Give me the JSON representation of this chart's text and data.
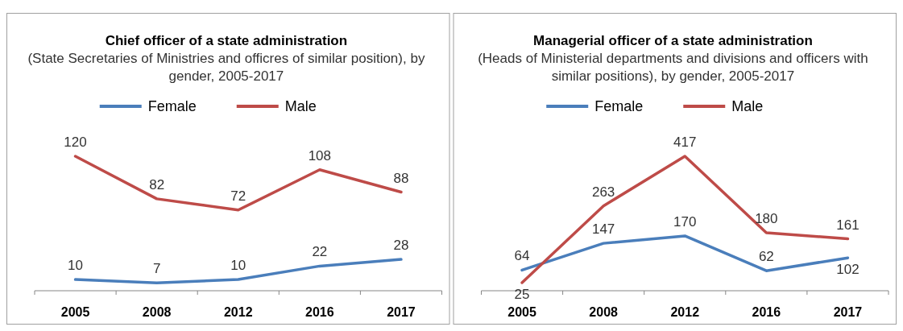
{
  "chart_data": [
    {
      "type": "line",
      "title": "Chief officer of a state administration",
      "subtitle": "(State Secretaries of Ministries and officres of similar position), by gender, 2005-2017",
      "categories": [
        "2005",
        "2008",
        "2012",
        "2016",
        "2017"
      ],
      "series": [
        {
          "name": "Female",
          "color": "#4a7ebb",
          "values": [
            10,
            7,
            10,
            22,
            28
          ]
        },
        {
          "name": "Male",
          "color": "#be4b48",
          "values": [
            120,
            82,
            72,
            108,
            88
          ]
        }
      ],
      "data_labels": true,
      "legend": "top",
      "grid": false,
      "marker": "none",
      "line_style": "solid"
    },
    {
      "type": "line",
      "title": "Managerial officer of a state administration",
      "subtitle": "(Heads of Ministerial departments and divisions and officers with similar positions), by gender, 2005-2017",
      "categories": [
        "2005",
        "2008",
        "2012",
        "2016",
        "2017"
      ],
      "series": [
        {
          "name": "Female",
          "color": "#4a7ebb",
          "values": [
            64,
            147,
            170,
            62,
            102
          ]
        },
        {
          "name": "Male",
          "color": "#be4b48",
          "values": [
            25,
            263,
            417,
            180,
            161
          ]
        }
      ],
      "data_labels": true,
      "legend": "top",
      "grid": false,
      "marker": "none",
      "line_style": "solid"
    }
  ]
}
